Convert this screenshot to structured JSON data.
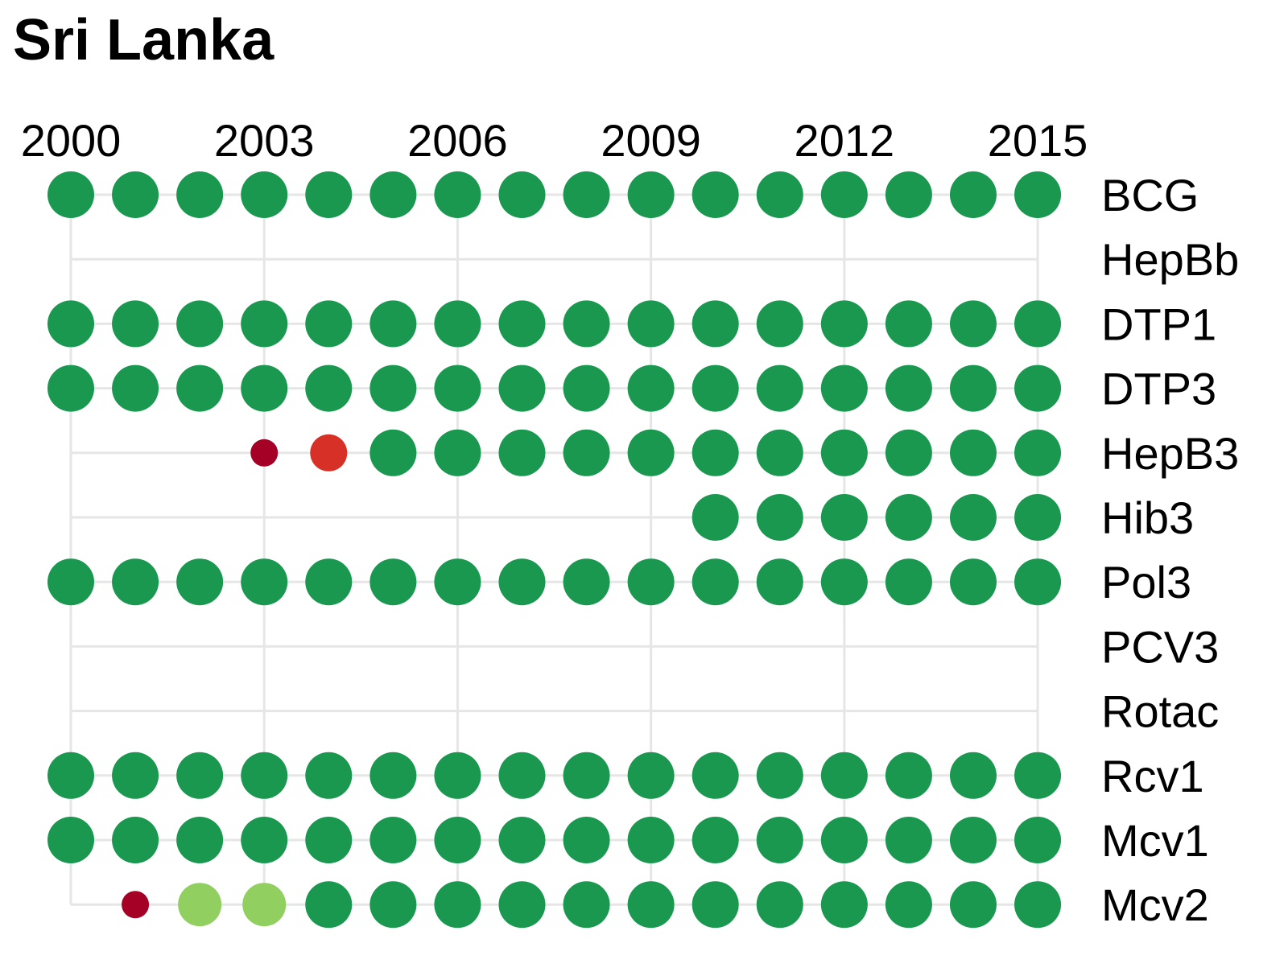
{
  "title": "Sri Lanka",
  "colors": {
    "grid": "#e6e6e6",
    "dark_green": "#1a9850",
    "light_green": "#91cf60",
    "orange_red": "#d73027",
    "dark_red": "#a50026"
  },
  "chart_data": {
    "type": "scatter",
    "title": "Sri Lanka",
    "x": [
      2000,
      2001,
      2002,
      2003,
      2004,
      2005,
      2006,
      2007,
      2008,
      2009,
      2010,
      2011,
      2012,
      2013,
      2014,
      2015
    ],
    "x_ticks": [
      "2000",
      "2003",
      "2006",
      "2009",
      "2012",
      "2015"
    ],
    "xlim": [
      2000,
      2015
    ],
    "grid": true,
    "categories": [
      "BCG",
      "HepBb",
      "DTP1",
      "DTP3",
      "HepB3",
      "Hib3",
      "Pol3",
      "PCV3",
      "Rotac",
      "Rcv1",
      "Mcv1",
      "Mcv2"
    ],
    "series": [
      {
        "vaccine": "BCG",
        "points": [
          {
            "year": 2000,
            "level": "high"
          },
          {
            "year": 2001,
            "level": "high"
          },
          {
            "year": 2002,
            "level": "high"
          },
          {
            "year": 2003,
            "level": "high"
          },
          {
            "year": 2004,
            "level": "high"
          },
          {
            "year": 2005,
            "level": "high"
          },
          {
            "year": 2006,
            "level": "high"
          },
          {
            "year": 2007,
            "level": "high"
          },
          {
            "year": 2008,
            "level": "high"
          },
          {
            "year": 2009,
            "level": "high"
          },
          {
            "year": 2010,
            "level": "high"
          },
          {
            "year": 2011,
            "level": "high"
          },
          {
            "year": 2012,
            "level": "high"
          },
          {
            "year": 2013,
            "level": "high"
          },
          {
            "year": 2014,
            "level": "high"
          },
          {
            "year": 2015,
            "level": "high"
          }
        ]
      },
      {
        "vaccine": "HepBb",
        "points": []
      },
      {
        "vaccine": "DTP1",
        "points": [
          {
            "year": 2000,
            "level": "high"
          },
          {
            "year": 2001,
            "level": "high"
          },
          {
            "year": 2002,
            "level": "high"
          },
          {
            "year": 2003,
            "level": "high"
          },
          {
            "year": 2004,
            "level": "high"
          },
          {
            "year": 2005,
            "level": "high"
          },
          {
            "year": 2006,
            "level": "high"
          },
          {
            "year": 2007,
            "level": "high"
          },
          {
            "year": 2008,
            "level": "high"
          },
          {
            "year": 2009,
            "level": "high"
          },
          {
            "year": 2010,
            "level": "high"
          },
          {
            "year": 2011,
            "level": "high"
          },
          {
            "year": 2012,
            "level": "high"
          },
          {
            "year": 2013,
            "level": "high"
          },
          {
            "year": 2014,
            "level": "high"
          },
          {
            "year": 2015,
            "level": "high"
          }
        ]
      },
      {
        "vaccine": "DTP3",
        "points": [
          {
            "year": 2000,
            "level": "high"
          },
          {
            "year": 2001,
            "level": "high"
          },
          {
            "year": 2002,
            "level": "high"
          },
          {
            "year": 2003,
            "level": "high"
          },
          {
            "year": 2004,
            "level": "high"
          },
          {
            "year": 2005,
            "level": "high"
          },
          {
            "year": 2006,
            "level": "high"
          },
          {
            "year": 2007,
            "level": "high"
          },
          {
            "year": 2008,
            "level": "high"
          },
          {
            "year": 2009,
            "level": "high"
          },
          {
            "year": 2010,
            "level": "high"
          },
          {
            "year": 2011,
            "level": "high"
          },
          {
            "year": 2012,
            "level": "high"
          },
          {
            "year": 2013,
            "level": "high"
          },
          {
            "year": 2014,
            "level": "high"
          },
          {
            "year": 2015,
            "level": "high"
          }
        ]
      },
      {
        "vaccine": "HepB3",
        "points": [
          {
            "year": 2003,
            "level": "very-low"
          },
          {
            "year": 2004,
            "level": "low"
          },
          {
            "year": 2005,
            "level": "high"
          },
          {
            "year": 2006,
            "level": "high"
          },
          {
            "year": 2007,
            "level": "high"
          },
          {
            "year": 2008,
            "level": "high"
          },
          {
            "year": 2009,
            "level": "high"
          },
          {
            "year": 2010,
            "level": "high"
          },
          {
            "year": 2011,
            "level": "high"
          },
          {
            "year": 2012,
            "level": "high"
          },
          {
            "year": 2013,
            "level": "high"
          },
          {
            "year": 2014,
            "level": "high"
          },
          {
            "year": 2015,
            "level": "high"
          }
        ]
      },
      {
        "vaccine": "Hib3",
        "points": [
          {
            "year": 2010,
            "level": "high"
          },
          {
            "year": 2011,
            "level": "high"
          },
          {
            "year": 2012,
            "level": "high"
          },
          {
            "year": 2013,
            "level": "high"
          },
          {
            "year": 2014,
            "level": "high"
          },
          {
            "year": 2015,
            "level": "high"
          }
        ]
      },
      {
        "vaccine": "Pol3",
        "points": [
          {
            "year": 2000,
            "level": "high"
          },
          {
            "year": 2001,
            "level": "high"
          },
          {
            "year": 2002,
            "level": "high"
          },
          {
            "year": 2003,
            "level": "high"
          },
          {
            "year": 2004,
            "level": "high"
          },
          {
            "year": 2005,
            "level": "high"
          },
          {
            "year": 2006,
            "level": "high"
          },
          {
            "year": 2007,
            "level": "high"
          },
          {
            "year": 2008,
            "level": "high"
          },
          {
            "year": 2009,
            "level": "high"
          },
          {
            "year": 2010,
            "level": "high"
          },
          {
            "year": 2011,
            "level": "high"
          },
          {
            "year": 2012,
            "level": "high"
          },
          {
            "year": 2013,
            "level": "high"
          },
          {
            "year": 2014,
            "level": "high"
          },
          {
            "year": 2015,
            "level": "high"
          }
        ]
      },
      {
        "vaccine": "PCV3",
        "points": []
      },
      {
        "vaccine": "Rotac",
        "points": []
      },
      {
        "vaccine": "Rcv1",
        "points": [
          {
            "year": 2000,
            "level": "high"
          },
          {
            "year": 2001,
            "level": "high"
          },
          {
            "year": 2002,
            "level": "high"
          },
          {
            "year": 2003,
            "level": "high"
          },
          {
            "year": 2004,
            "level": "high"
          },
          {
            "year": 2005,
            "level": "high"
          },
          {
            "year": 2006,
            "level": "high"
          },
          {
            "year": 2007,
            "level": "high"
          },
          {
            "year": 2008,
            "level": "high"
          },
          {
            "year": 2009,
            "level": "high"
          },
          {
            "year": 2010,
            "level": "high"
          },
          {
            "year": 2011,
            "level": "high"
          },
          {
            "year": 2012,
            "level": "high"
          },
          {
            "year": 2013,
            "level": "high"
          },
          {
            "year": 2014,
            "level": "high"
          },
          {
            "year": 2015,
            "level": "high"
          }
        ]
      },
      {
        "vaccine": "Mcv1",
        "points": [
          {
            "year": 2000,
            "level": "high"
          },
          {
            "year": 2001,
            "level": "high"
          },
          {
            "year": 2002,
            "level": "high"
          },
          {
            "year": 2003,
            "level": "high"
          },
          {
            "year": 2004,
            "level": "high"
          },
          {
            "year": 2005,
            "level": "high"
          },
          {
            "year": 2006,
            "level": "high"
          },
          {
            "year": 2007,
            "level": "high"
          },
          {
            "year": 2008,
            "level": "high"
          },
          {
            "year": 2009,
            "level": "high"
          },
          {
            "year": 2010,
            "level": "high"
          },
          {
            "year": 2011,
            "level": "high"
          },
          {
            "year": 2012,
            "level": "high"
          },
          {
            "year": 2013,
            "level": "high"
          },
          {
            "year": 2014,
            "level": "high"
          },
          {
            "year": 2015,
            "level": "high"
          }
        ]
      },
      {
        "vaccine": "Mcv2",
        "points": [
          {
            "year": 2001,
            "level": "very-low"
          },
          {
            "year": 2002,
            "level": "medium"
          },
          {
            "year": 2003,
            "level": "medium"
          },
          {
            "year": 2004,
            "level": "high"
          },
          {
            "year": 2005,
            "level": "high"
          },
          {
            "year": 2006,
            "level": "high"
          },
          {
            "year": 2007,
            "level": "high"
          },
          {
            "year": 2008,
            "level": "high"
          },
          {
            "year": 2009,
            "level": "high"
          },
          {
            "year": 2010,
            "level": "high"
          },
          {
            "year": 2011,
            "level": "high"
          },
          {
            "year": 2012,
            "level": "high"
          },
          {
            "year": 2013,
            "level": "high"
          },
          {
            "year": 2014,
            "level": "high"
          },
          {
            "year": 2015,
            "level": "high"
          }
        ]
      }
    ]
  }
}
